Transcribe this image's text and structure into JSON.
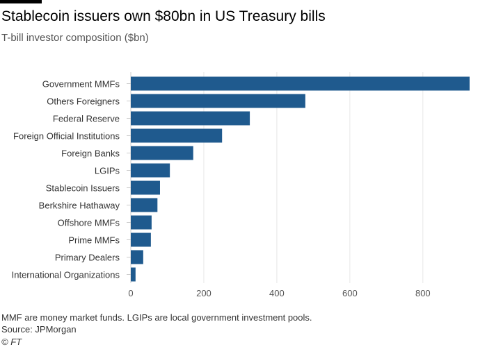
{
  "chart_data": {
    "type": "bar",
    "orientation": "horizontal",
    "title": "Stablecoin issuers own $80bn in US Treasury bills",
    "subtitle": "T-bill investor composition ($bn)",
    "categories": [
      "Government MMFs",
      "Others Foreigners",
      "Federal Reserve",
      "Foreign Official Institutions",
      "Foreign Banks",
      "LGIPs",
      "Stablecoin Issuers",
      "Berkshire Hathaway",
      "Offshore MMFs",
      "Prime MMFs",
      "Primary Dealers",
      "International Organizations"
    ],
    "values": [
      928,
      478,
      326,
      250,
      171,
      107,
      80,
      73,
      57,
      55,
      34,
      13
    ],
    "xticks": [
      0,
      200,
      400,
      600,
      800
    ],
    "xlim": [
      0,
      928
    ],
    "xlabel": "",
    "ylabel": "",
    "grid": true,
    "bar_color": "#1f5a8e"
  },
  "footer": {
    "note": "MMF are money market funds. LGIPs are local government investment pools.",
    "source": "Source: JPMorgan",
    "copyright": "© FT"
  }
}
